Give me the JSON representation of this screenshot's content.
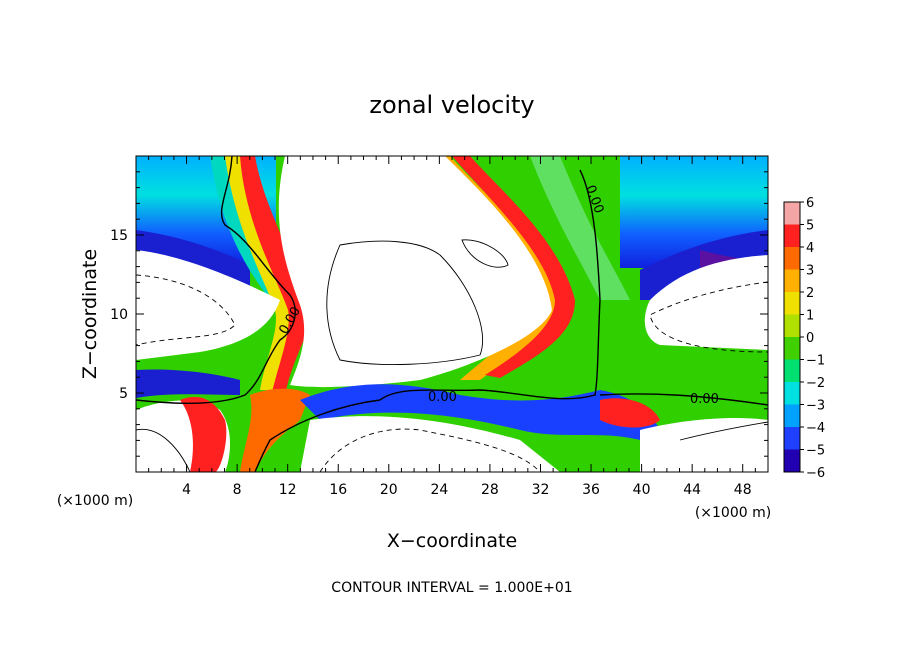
{
  "chart_data": {
    "type": "heatmap",
    "title": "zonal velocity",
    "xlabel": "X−coordinate",
    "ylabel": "Z−coordinate",
    "x_unit_left": "(×1000 m)",
    "x_unit_right": "(×1000 m)",
    "footer": "CONTOUR INTERVAL = 1.000E+01",
    "xlim": [
      0,
      50
    ],
    "ylim": [
      0,
      20
    ],
    "x_ticks": [
      4,
      8,
      12,
      16,
      20,
      24,
      28,
      32,
      36,
      40,
      44,
      48
    ],
    "y_ticks": [
      5,
      10,
      15
    ],
    "contour_label": "0.00",
    "colorbar": {
      "levels": [
        6,
        5,
        4,
        3,
        2,
        1,
        0,
        -1,
        -2,
        -3,
        -4,
        -5,
        -6
      ],
      "colors": [
        "#f4a6a6",
        "#ff2020",
        "#ff6a00",
        "#ffb000",
        "#f0e000",
        "#b0e000",
        "#40d000",
        "#00e070",
        "#00e0e0",
        "#00a0ff",
        "#2040ff",
        "#2000b0",
        "#6a10a0"
      ]
    }
  }
}
